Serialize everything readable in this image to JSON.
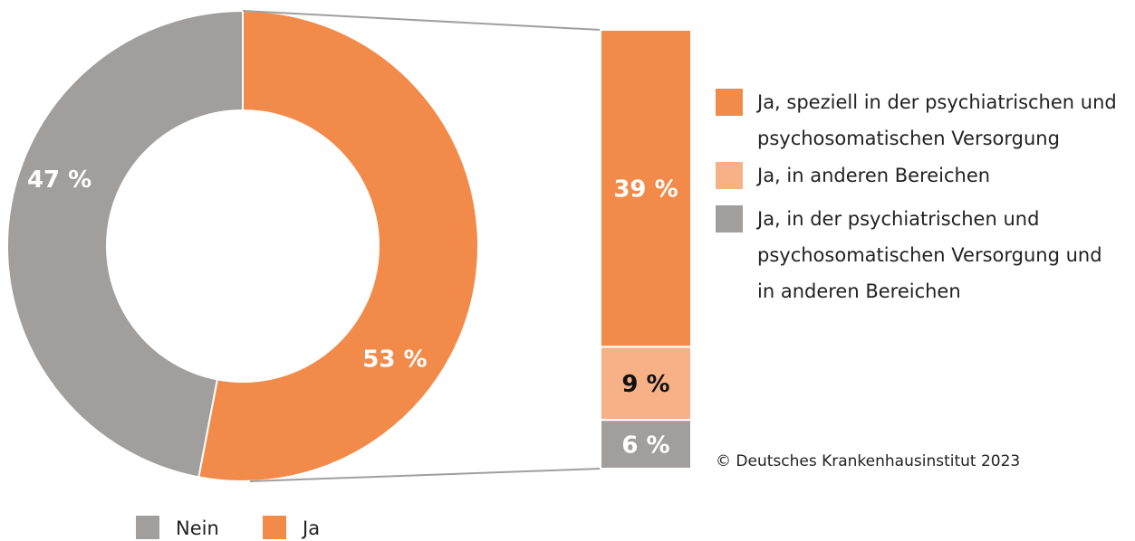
{
  "chart_data": [
    {
      "type": "donut",
      "categories": [
        "Nein",
        "Ja"
      ],
      "values": [
        47,
        53
      ],
      "value_labels": [
        "47 %",
        "53 %"
      ],
      "colors": [
        "#a09f9e",
        "#f28a4a"
      ]
    },
    {
      "type": "stacked_bar",
      "series": [
        {
          "name": "Ja, in der psychiatrischen und psychosomatischen Versorgung und in anderen Bereichen",
          "color": "#a09f9e",
          "values": [
            6
          ],
          "value_labels": [
            "6 %"
          ],
          "label_color": "#ffffff"
        },
        {
          "name": "Ja, in anderen Bereichen",
          "color": "#f7b187",
          "values": [
            9
          ],
          "value_labels": [
            "9 %"
          ],
          "label_color": "#111111"
        },
        {
          "name": "Ja, speziell in der psychiatrischen und psychosomatischen Versorgung",
          "color": "#f28a4a",
          "values": [
            39
          ],
          "value_labels": [
            "39 %"
          ],
          "label_color": "#ffffff"
        }
      ],
      "annotation": "© Deutsches Krankenhausinstitut 2023"
    }
  ]
}
